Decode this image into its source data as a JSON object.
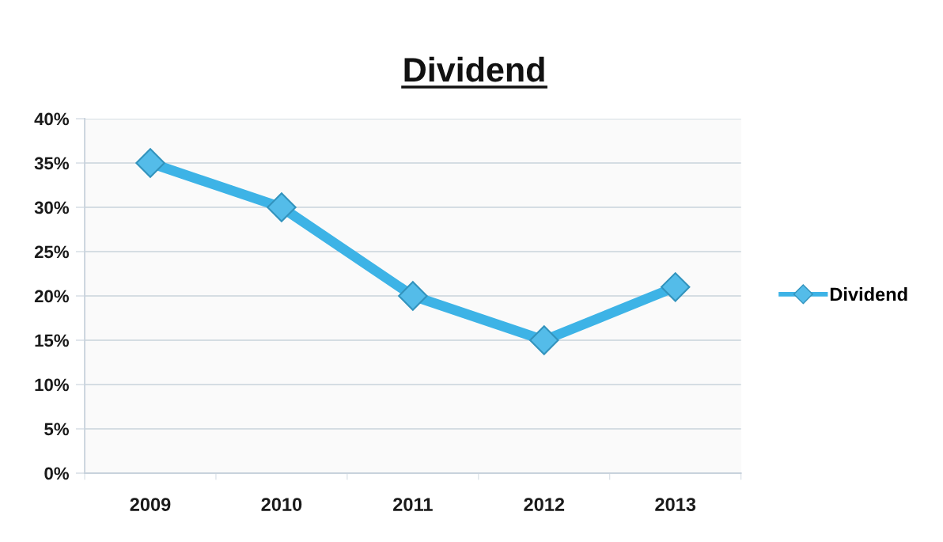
{
  "chart_data": {
    "type": "line",
    "title": "Dividend",
    "categories": [
      "2009",
      "2010",
      "2011",
      "2012",
      "2013"
    ],
    "series": [
      {
        "name": "Dividend",
        "color": "#3db3e6",
        "values": [
          35,
          30,
          20,
          15,
          21
        ]
      }
    ],
    "ylim": [
      0,
      40
    ],
    "yticks": [
      {
        "value": 0,
        "label": "0%"
      },
      {
        "value": 5,
        "label": "5%"
      },
      {
        "value": 10,
        "label": "10%"
      },
      {
        "value": 15,
        "label": "15%"
      },
      {
        "value": 20,
        "label": "20%"
      },
      {
        "value": 25,
        "label": "25%"
      },
      {
        "value": 30,
        "label": "30%"
      },
      {
        "value": 35,
        "label": "35%"
      },
      {
        "value": 40,
        "label": "40%"
      }
    ],
    "grid": "y",
    "legend": "right",
    "marker": "diamond",
    "line_style": "solid"
  }
}
